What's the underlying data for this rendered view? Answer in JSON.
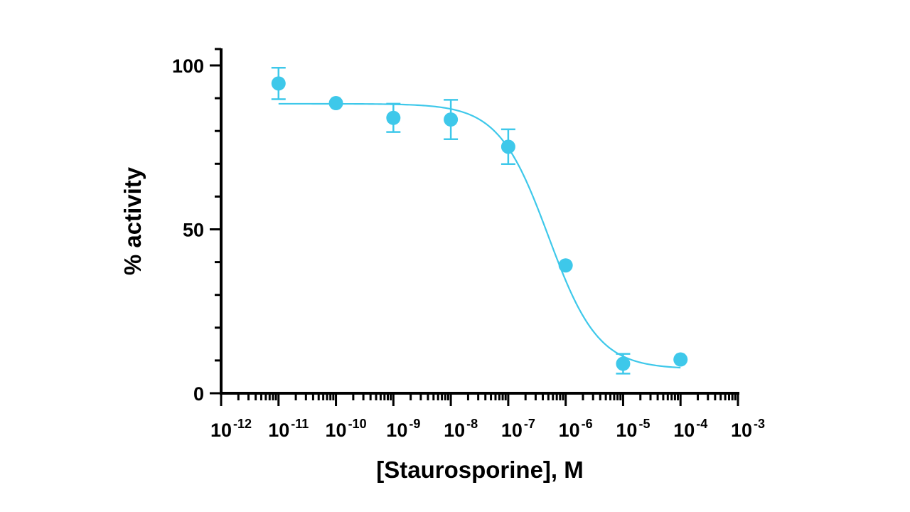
{
  "chart_data": {
    "type": "scatter",
    "title": "",
    "xlabel": "[Staurosporine], M",
    "ylabel": "% activity",
    "xscale": "log",
    "xlim": [
      1e-12,
      0.001
    ],
    "ylim": [
      0,
      100
    ],
    "x_tick_labels": [
      {
        "base": "10",
        "exp": "-12"
      },
      {
        "base": "10",
        "exp": "-11"
      },
      {
        "base": "10",
        "exp": "-10"
      },
      {
        "base": "10",
        "exp": "-9"
      },
      {
        "base": "10",
        "exp": "-8"
      },
      {
        "base": "10",
        "exp": "-7"
      },
      {
        "base": "10",
        "exp": "-6"
      },
      {
        "base": "10",
        "exp": "-5"
      },
      {
        "base": "10",
        "exp": "-4"
      },
      {
        "base": "10",
        "exp": "-3"
      }
    ],
    "y_ticks": [
      0,
      50,
      100
    ],
    "y_tick_labels": [
      "0",
      "50",
      "100"
    ],
    "y_minor_step": 10,
    "grid": false,
    "legend": "none",
    "color": "#3ec8ea",
    "series": [
      {
        "points": [
          {
            "x": 1e-11,
            "y": 94.5,
            "err": 4.8
          },
          {
            "x": 1e-10,
            "y": 88.5,
            "err": 0
          },
          {
            "x": 1e-09,
            "y": 84.0,
            "err": 4.3
          },
          {
            "x": 1e-08,
            "y": 83.5,
            "err": 6.0
          },
          {
            "x": 1e-07,
            "y": 75.2,
            "err": 5.3
          },
          {
            "x": 1e-06,
            "y": 39.0,
            "err": 0
          },
          {
            "x": 1e-05,
            "y": 9.0,
            "err": 3.0
          },
          {
            "x": 0.0001,
            "y": 10.3,
            "err": 0
          }
        ],
        "fit": {
          "model": "four-parameter logistic",
          "top": 88.3,
          "bottom": 7.4,
          "log_ic50": -6.3,
          "hill": 1.0,
          "x_range": [
            1e-11,
            0.0001
          ]
        }
      }
    ]
  }
}
